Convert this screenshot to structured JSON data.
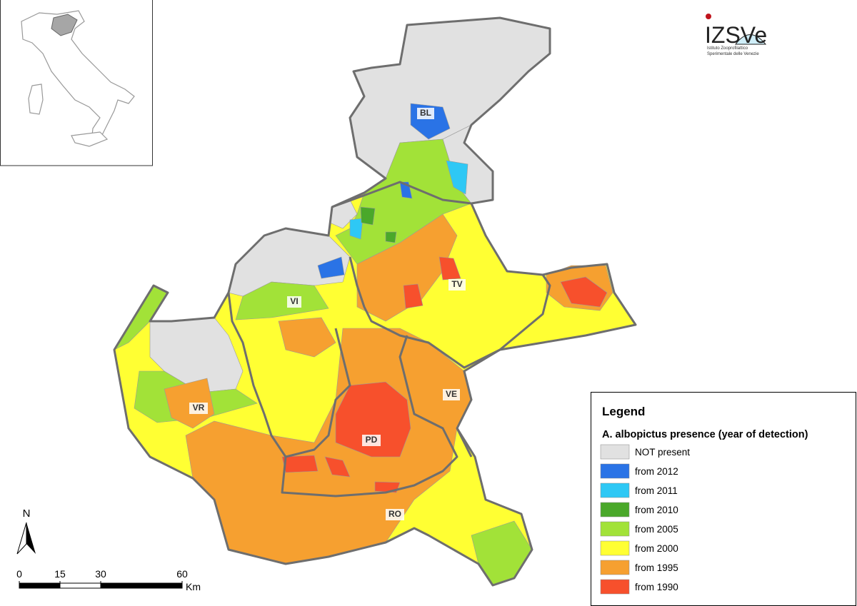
{
  "logo": {
    "mark": "IZSVe",
    "lines": [
      "Istituto Zooprofilattico",
      "Sperimentale delle Venezie"
    ]
  },
  "provinces": [
    "BL",
    "TV",
    "VI",
    "VR",
    "VE",
    "PD",
    "RO"
  ],
  "legend": {
    "title": "Legend",
    "subtitle": "A. albopictus presence (year of detection)",
    "items": [
      {
        "label": "NOT present",
        "color": "#e1e1e1"
      },
      {
        "label": "from 2012",
        "color": "#2a73e6"
      },
      {
        "label": "from 2011",
        "color": "#2ec8f5"
      },
      {
        "label": "from 2010",
        "color": "#4aa82a"
      },
      {
        "label": "from 2005",
        "color": "#a2e238"
      },
      {
        "label": "from 2000",
        "color": "#ffff33"
      },
      {
        "label": "from 1995",
        "color": "#f6a030"
      },
      {
        "label": "from 1990",
        "color": "#f7502c"
      }
    ]
  },
  "north_arrow": "N",
  "scale_bar": {
    "ticks": [
      0,
      15,
      30,
      60
    ],
    "unit": "Km"
  }
}
